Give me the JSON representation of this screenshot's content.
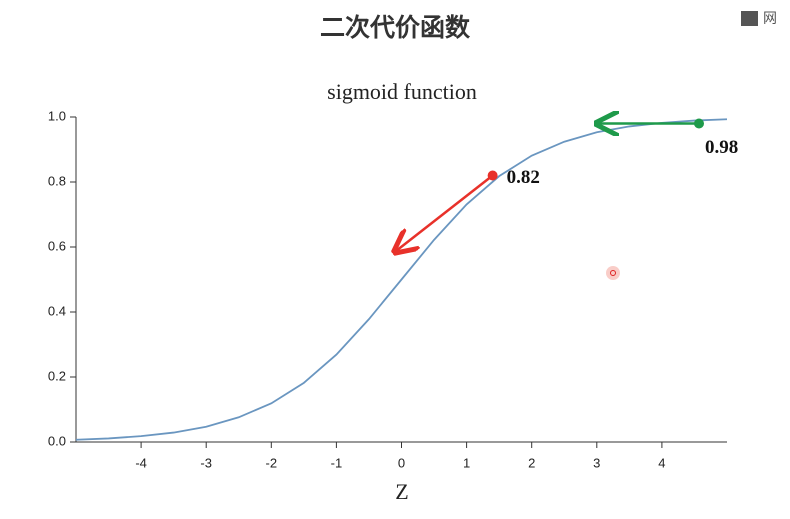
{
  "slide_title": "二次代价函数",
  "badge": "网",
  "chart_data": {
    "type": "line",
    "title": "sigmoid function",
    "x_label": "Z",
    "x": [
      -5,
      -4.5,
      -4,
      -3.5,
      -3,
      -2.5,
      -2,
      -1.5,
      -1,
      -0.5,
      0,
      0.5,
      1,
      1.5,
      2,
      2.5,
      3,
      3.5,
      4,
      4.5,
      5
    ],
    "values": [
      0.007,
      0.011,
      0.018,
      0.029,
      0.047,
      0.076,
      0.119,
      0.182,
      0.269,
      0.378,
      0.5,
      0.622,
      0.731,
      0.818,
      0.881,
      0.924,
      0.953,
      0.971,
      0.982,
      0.989,
      0.993
    ],
    "color": "#6a96c0",
    "xlim": [
      -5,
      5
    ],
    "xticks": [
      -4,
      -3,
      -2,
      -1,
      0,
      1,
      2,
      3,
      4
    ],
    "ylim": [
      0,
      1
    ],
    "yticks": [
      {
        "value": 0,
        "label": "0.0"
      },
      {
        "value": 0.2,
        "label": "0.2"
      },
      {
        "value": 0.4,
        "label": "0.4"
      },
      {
        "value": 0.6,
        "label": "0.6"
      },
      {
        "value": 0.8,
        "label": "0.8"
      },
      {
        "value": 1,
        "label": "1.0"
      }
    ],
    "annotations": [
      {
        "x": 1.4,
        "value": 0.82,
        "color": "#e8312a"
      },
      {
        "x": 4.57,
        "value": 0.98,
        "color": "#1e9a4a"
      }
    ]
  }
}
